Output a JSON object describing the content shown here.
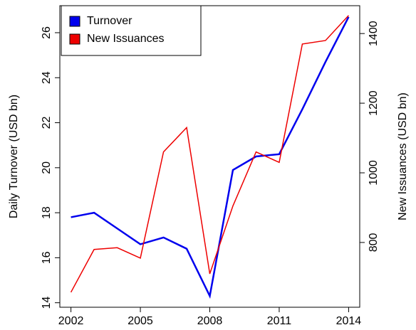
{
  "chart_data": {
    "type": "line",
    "x": [
      2002,
      2003,
      2004,
      2005,
      2006,
      2007,
      2008,
      2009,
      2010,
      2011,
      2012,
      2013,
      2014
    ],
    "xlim": [
      2001.52,
      2014.48
    ],
    "xticks": [
      2002,
      2005,
      2008,
      2011,
      2014
    ],
    "ylabel": "Daily Turnover (USD bn)",
    "ylim": [
      13.8,
      27.2
    ],
    "yticks": [
      14,
      16,
      18,
      20,
      22,
      24,
      26
    ],
    "y2label": "New Issuances (USD bn)",
    "y2lim": [
      614,
      1480
    ],
    "y2ticks": [
      800,
      1000,
      1200,
      1400
    ],
    "legend": "top-left",
    "series": [
      {
        "name": "Turnover",
        "color": "#0000ee",
        "values": [
          17.8,
          18.0,
          17.3,
          16.6,
          16.9,
          16.4,
          14.3,
          19.9,
          20.5,
          20.6,
          22.6,
          24.7,
          26.7
        ]
      },
      {
        "name": "New Issuances",
        "color": "#ee0000",
        "axis": "y2",
        "values": [
          657,
          780,
          785,
          755,
          1060,
          1130,
          710,
          905,
          1060,
          1030,
          1370,
          1380,
          1452
        ]
      }
    ]
  }
}
